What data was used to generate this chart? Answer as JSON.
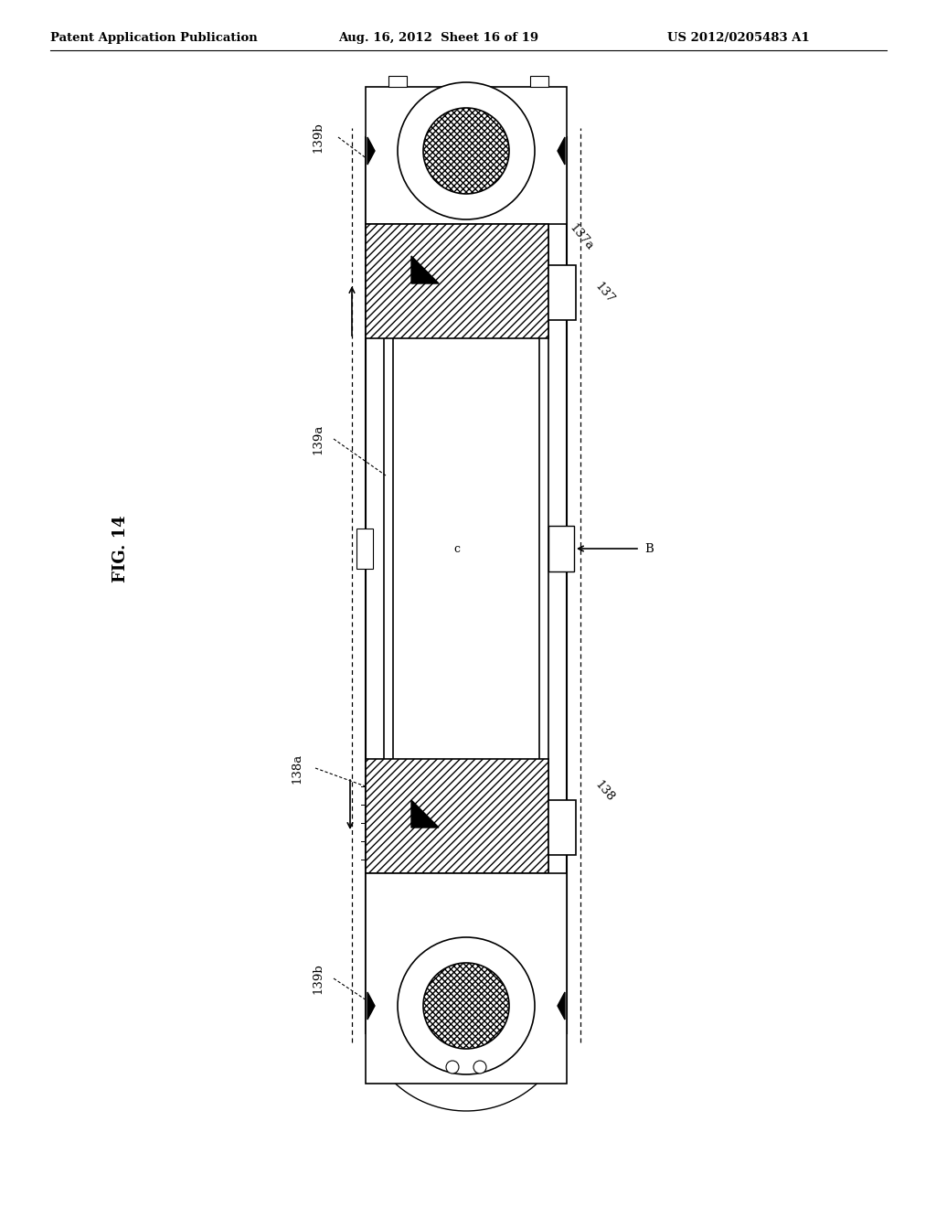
{
  "bg_color": "#ffffff",
  "line_color": "#000000",
  "header_left": "Patent Application Publication",
  "header_mid": "Aug. 16, 2012  Sheet 16 of 19",
  "header_right": "US 2012/0205483 A1",
  "fig_label": "FIG. 14",
  "labels": {
    "139b_top": "139b",
    "137a": "137a",
    "137": "137",
    "139a": "139a",
    "B": "B",
    "c": "c",
    "138a": "138a",
    "138": "138",
    "139b_bot": "139b"
  }
}
